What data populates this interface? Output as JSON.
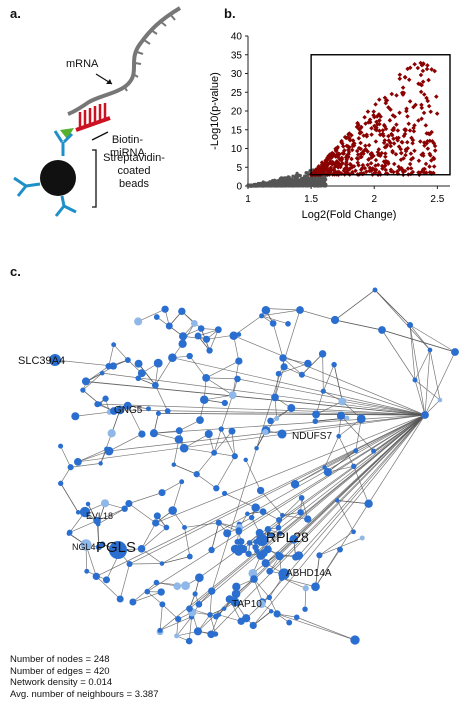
{
  "panel_a": {
    "letter": "a.",
    "labels": {
      "mrna": "mRNA",
      "biotin": "Biotin-\nmiRNA",
      "beads": "Streptavidin-\ncoated\nbeads"
    }
  },
  "panel_b": {
    "letter": "b.",
    "chart_data": {
      "type": "scatter",
      "xlabel": "Log2(Fold Change)",
      "ylabel": "-Log10(p-value)",
      "xlim": [
        1,
        2.6
      ],
      "ylim": [
        0,
        40
      ],
      "xticks": [
        "1",
        "1.5",
        "2",
        "2.5"
      ],
      "yticks": [
        "0",
        "5",
        "10",
        "15",
        "20",
        "25",
        "30",
        "35",
        "40"
      ],
      "selection_box": {
        "x": [
          1.5,
          2.6
        ],
        "y": [
          3,
          35
        ]
      },
      "colors": {
        "background_points": "#555555",
        "selected_points": "#8b0000"
      }
    }
  },
  "panel_c": {
    "letter": "c.",
    "node_labels": {
      "slc": "SLC39A4",
      "gng5": "GNG5",
      "ndufs7": "NDUFS7",
      "rpl28": "RPL28",
      "pgls": "PGLS",
      "abhd": "ABHD14A",
      "tap": "TAP10",
      "evl": "EVL18",
      "ngl4": "NGL4"
    },
    "stats": [
      "Number of nodes = 248",
      "Number of edges = 420",
      "Network density = 0.014",
      "Avg. number of neighbours = 3.387"
    ],
    "colors": {
      "node": "#2a6fd0",
      "node_light": "#8fb8e8",
      "edge": "#555555"
    }
  }
}
